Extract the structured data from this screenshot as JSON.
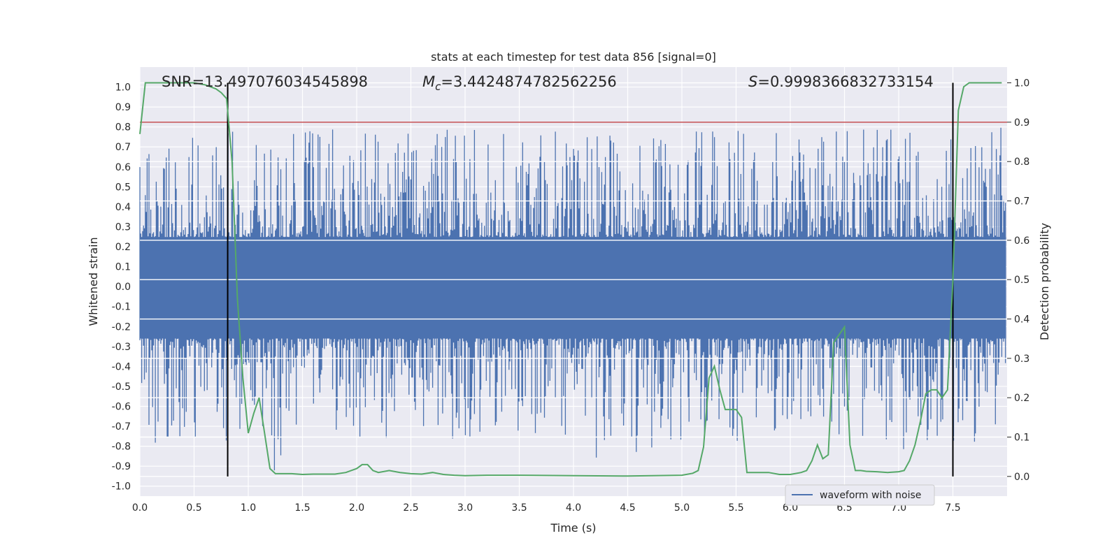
{
  "chart_data": {
    "type": "line",
    "title": "stats at each timestep for test data 856 [signal=0]",
    "xlabel": "Time (s)",
    "ylabel": "Whitened strain",
    "ylabel_right": "Detection probability",
    "xlim": [
      0.0,
      8.0
    ],
    "ylim": [
      -1.05,
      1.1
    ],
    "ylim_right": [
      -0.05,
      1.04
    ],
    "x_ticks": [
      "0.0",
      "0.5",
      "1.0",
      "1.5",
      "2.0",
      "2.5",
      "3.0",
      "3.5",
      "4.0",
      "4.5",
      "5.0",
      "5.5",
      "6.0",
      "6.5",
      "7.0",
      "7.5"
    ],
    "y_ticks": [
      "1.0",
      "0.9",
      "0.8",
      "0.7",
      "0.6",
      "0.5",
      "0.4",
      "0.3",
      "0.2",
      "0.1",
      "0.0",
      "-0.1",
      "-0.2",
      "-0.3",
      "-0.4",
      "-0.5",
      "-0.6",
      "-0.7",
      "-0.8",
      "-0.9",
      "-1.0"
    ],
    "y_ticks_right": [
      "1.0",
      "0.9",
      "0.8",
      "0.7",
      "0.6",
      "0.5",
      "0.4",
      "0.3",
      "0.2",
      "0.1",
      "0.0"
    ],
    "grid": true,
    "legend_position": "bottom-right",
    "annotations": {
      "snr": "SNR=13.497076034545898",
      "mc_symbol": "M",
      "mc_sub": "c",
      "mc_value": "=3.4424874782562256",
      "s_symbol": "S",
      "s_value": "=0.9998366832733154"
    },
    "threshold": {
      "value_right": 0.9,
      "color": "#c44e52"
    },
    "vertical_markers_x": [
      0.81,
      7.5
    ],
    "series": [
      {
        "name": "waveform with noise",
        "axis": "left",
        "color": "#4c72b0",
        "style": "dense noise trace",
        "x_range": [
          0.0,
          7.99
        ],
        "envelope": {
          "core_amplitude": 0.4,
          "peak_max": 0.8,
          "peak_min": -0.93
        }
      },
      {
        "axis": "right",
        "color": "#55a868",
        "x": [
          0.0,
          0.05,
          0.1,
          0.2,
          0.3,
          0.4,
          0.5,
          0.6,
          0.7,
          0.75,
          0.8,
          0.85,
          0.9,
          0.95,
          1.0,
          1.05,
          1.1,
          1.15,
          1.2,
          1.25,
          1.3,
          1.4,
          1.5,
          1.6,
          1.7,
          1.8,
          1.9,
          2.0,
          2.05,
          2.1,
          2.15,
          2.2,
          2.3,
          2.4,
          2.5,
          2.6,
          2.7,
          2.8,
          2.9,
          3.0,
          3.2,
          3.5,
          4.0,
          4.5,
          5.0,
          5.1,
          5.15,
          5.2,
          5.25,
          5.3,
          5.35,
          5.4,
          5.45,
          5.5,
          5.55,
          5.6,
          5.65,
          5.7,
          5.8,
          5.9,
          6.0,
          6.1,
          6.15,
          6.2,
          6.25,
          6.3,
          6.35,
          6.4,
          6.45,
          6.5,
          6.55,
          6.6,
          6.65,
          6.7,
          6.8,
          6.9,
          7.0,
          7.05,
          7.1,
          7.15,
          7.2,
          7.25,
          7.3,
          7.35,
          7.4,
          7.45,
          7.5,
          7.55,
          7.6,
          7.65,
          7.7,
          7.8,
          7.95
        ],
        "values": [
          0.87,
          1.0,
          1.0,
          1.0,
          1.0,
          1.0,
          1.0,
          0.995,
          0.985,
          0.975,
          0.96,
          0.8,
          0.45,
          0.25,
          0.11,
          0.16,
          0.2,
          0.11,
          0.02,
          0.007,
          0.007,
          0.007,
          0.005,
          0.006,
          0.006,
          0.006,
          0.01,
          0.02,
          0.03,
          0.03,
          0.015,
          0.01,
          0.015,
          0.01,
          0.007,
          0.006,
          0.01,
          0.005,
          0.003,
          0.002,
          0.003,
          0.003,
          0.002,
          0.001,
          0.003,
          0.008,
          0.015,
          0.075,
          0.25,
          0.28,
          0.22,
          0.17,
          0.17,
          0.17,
          0.15,
          0.01,
          0.01,
          0.01,
          0.01,
          0.005,
          0.005,
          0.01,
          0.015,
          0.04,
          0.08,
          0.045,
          0.055,
          0.34,
          0.36,
          0.38,
          0.08,
          0.015,
          0.015,
          0.013,
          0.012,
          0.01,
          0.012,
          0.015,
          0.04,
          0.08,
          0.14,
          0.21,
          0.22,
          0.22,
          0.2,
          0.22,
          0.5,
          0.93,
          0.99,
          1.0,
          1.0,
          1.0,
          1.0
        ]
      }
    ]
  }
}
